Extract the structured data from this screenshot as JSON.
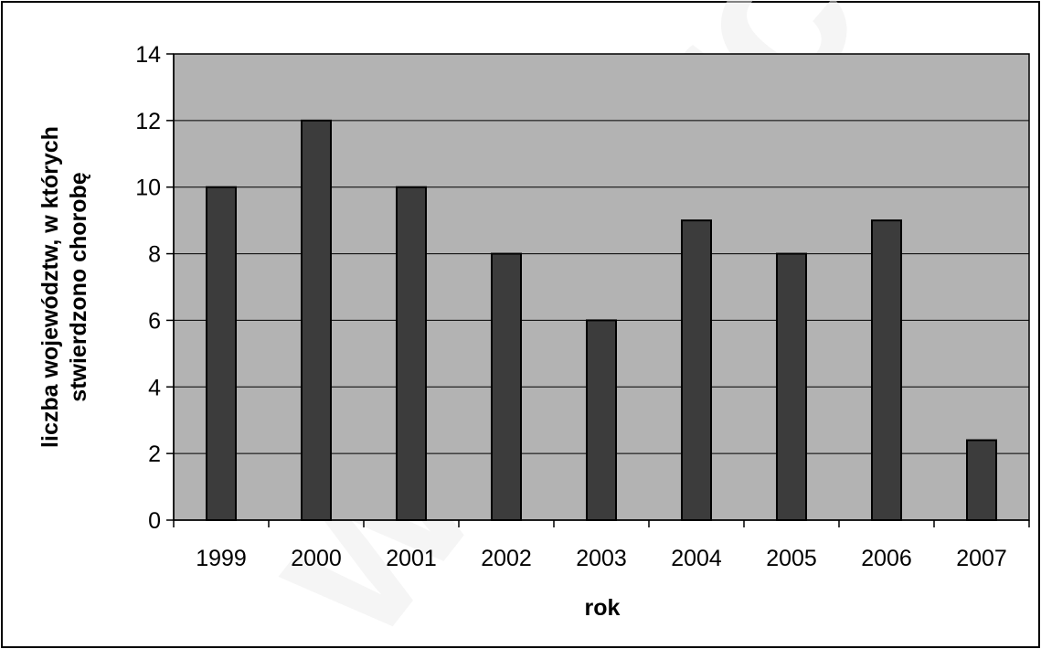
{
  "chart_data": {
    "type": "bar",
    "title": "",
    "xlabel": "rok",
    "ylabel_lines": [
      "liczba województw, w których",
      "stwierdzono chorobę"
    ],
    "categories": [
      "1999",
      "2000",
      "2001",
      "2002",
      "2003",
      "2004",
      "2005",
      "2006",
      "2007"
    ],
    "values": [
      10,
      12,
      10,
      8,
      6,
      9,
      8,
      9,
      2.4
    ],
    "ylim": [
      0,
      14
    ],
    "yticks": [
      0,
      2,
      4,
      6,
      8,
      10,
      12,
      14
    ],
    "grid": true,
    "legend": "none",
    "colors": {
      "plot_background": "#b3b3b3",
      "bar_fill": "#3c3c3c",
      "bar_stroke": "#000000",
      "gridline": "#000000",
      "watermark": "#e6e6e6"
    }
  },
  "watermark_text": "www.rc"
}
